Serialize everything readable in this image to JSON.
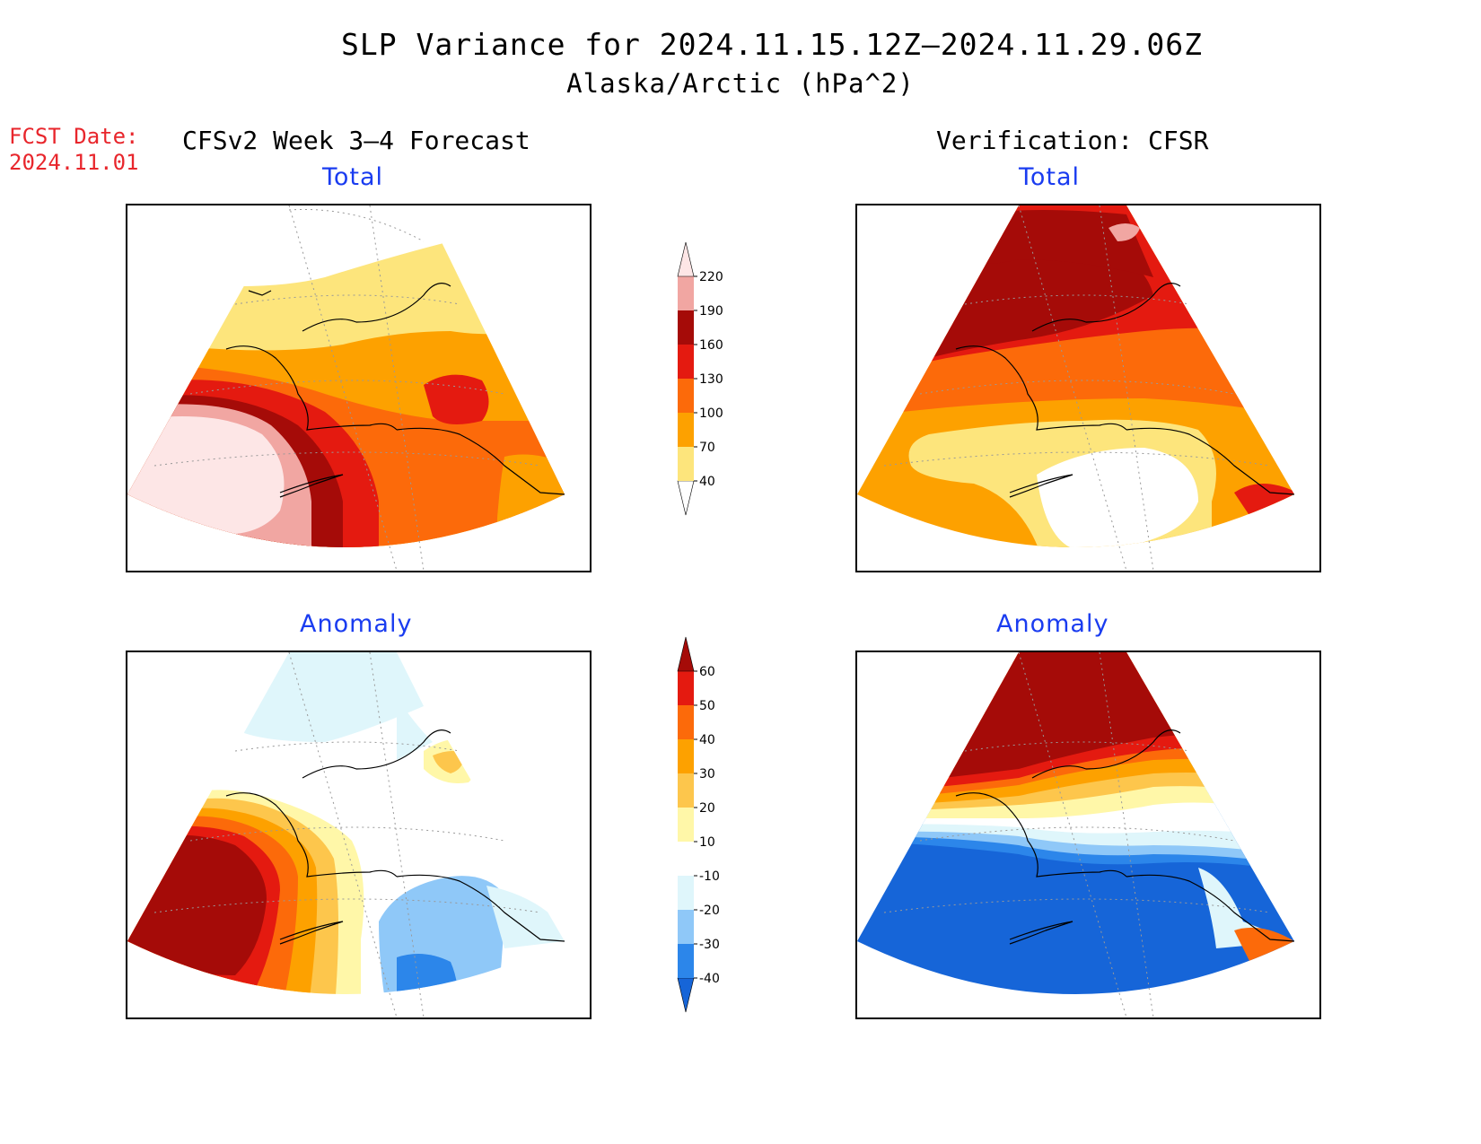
{
  "title": "SLP Variance for 2024.11.15.12Z—2024.11.29.06Z",
  "subtitle": "Alaska/Arctic (hPa^2)",
  "fcst_date_label": "FCST Date:",
  "fcst_date": "2024.11.01",
  "left_header": "CFSv2 Week 3—4 Forecast",
  "right_header": "Verification: CFSR",
  "panels": {
    "forecast_total": "Total",
    "verification_total": "Total",
    "forecast_anomaly": "Anomaly",
    "verification_anomaly": "Anomaly"
  },
  "colorbars": {
    "total": {
      "levels": [
        "40",
        "70",
        "100",
        "130",
        "160",
        "190",
        "220"
      ],
      "colors": [
        "#ffffff",
        "#fde57c",
        "#fda100",
        "#fc6a0a",
        "#e41a10",
        "#a50b08",
        "#f1a6a2",
        "#fde6e6"
      ]
    },
    "anomaly": {
      "levels": [
        "-40",
        "-30",
        "-20",
        "-10",
        "10",
        "20",
        "30",
        "40",
        "50",
        "60"
      ],
      "colors": [
        "#1665d8",
        "#2c86ea",
        "#8fc8f8",
        "#dff6fb",
        "#ffffff",
        "#fff7a8",
        "#fdc64c",
        "#fda100",
        "#fc6a0a",
        "#e41a10",
        "#a50b08"
      ]
    }
  }
}
